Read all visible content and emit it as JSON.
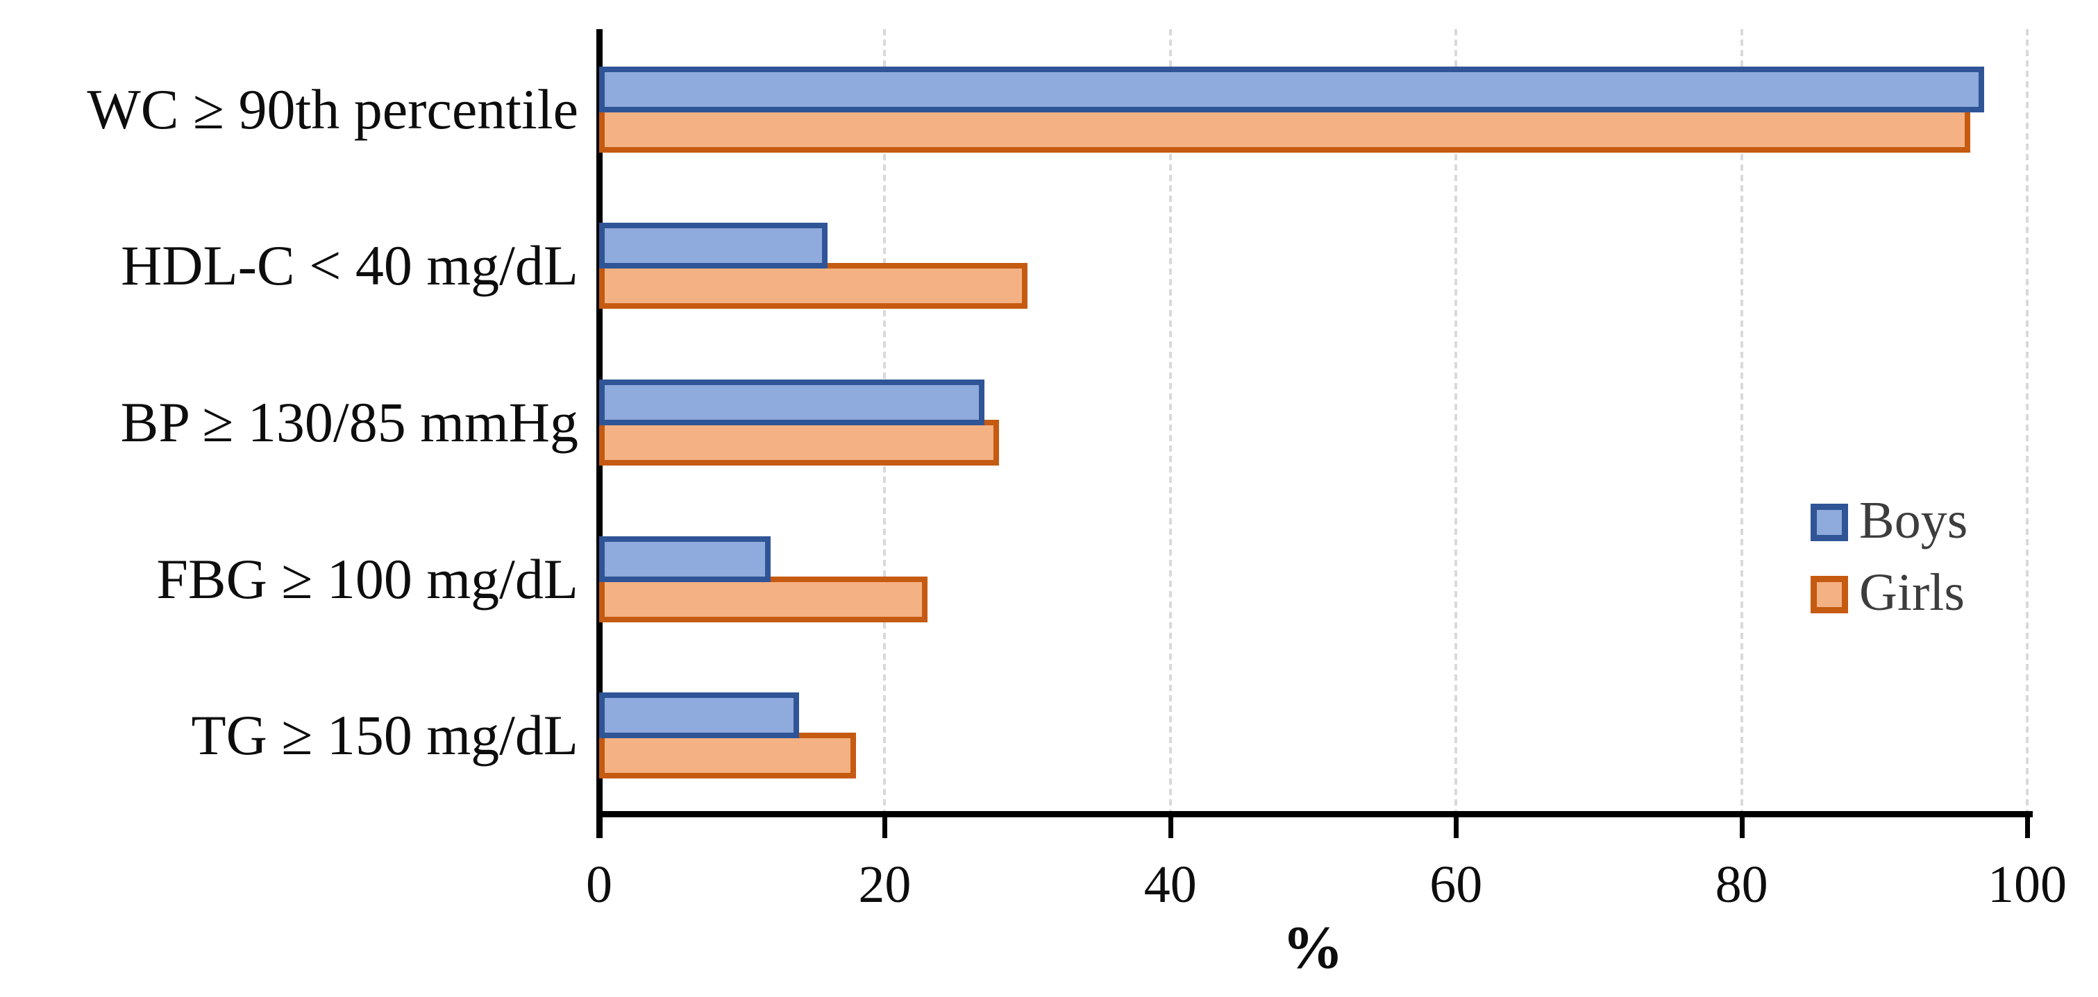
{
  "chart_data": {
    "type": "bar",
    "orientation": "horizontal",
    "title": "",
    "xlabel": "%",
    "ylabel": "",
    "xlim": [
      0,
      100
    ],
    "xticks": [
      0,
      20,
      40,
      60,
      80,
      100
    ],
    "grid": "vertical-dashed-gray",
    "legend_position": "middle-right",
    "categories": [
      "WC ≥ 90th percentile",
      "HDL-C < 40 mg/dL",
      "BP ≥ 130/85 mmHg",
      "FBG ≥ 100 mg/dL",
      "TG ≥ 150 mg/dL"
    ],
    "series": [
      {
        "name": "Boys",
        "values": [
          97,
          16,
          27,
          12,
          14
        ],
        "fill": "#8FAADC",
        "border": "#2F5597"
      },
      {
        "name": "Girls",
        "values": [
          96,
          30,
          28,
          23,
          18
        ],
        "fill": "#F4B183",
        "border": "#C55A11"
      }
    ]
  },
  "colors": {
    "axis": "#000000",
    "gridline": "#D9D9D9",
    "tick_text": "#0D0D0D",
    "category_text": "#0D0D0D",
    "legend_text": "#3D3D3D",
    "background": "#FFFFFF"
  }
}
